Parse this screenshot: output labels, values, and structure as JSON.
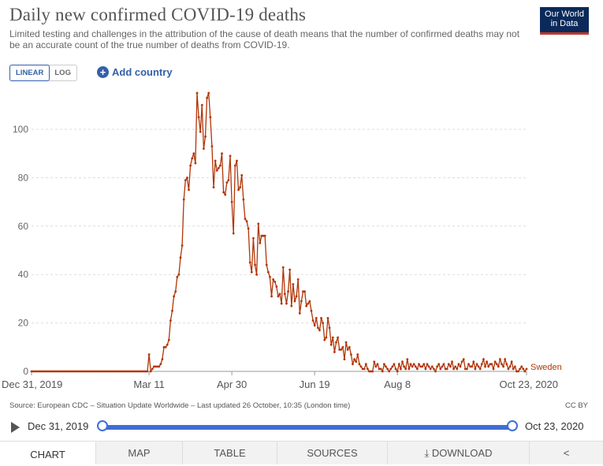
{
  "header": {
    "title": "Daily new confirmed COVID-19 deaths",
    "subtitle": "Limited testing and challenges in the attribution of the cause of death means that the number of confirmed deaths may not be an accurate count of the true number of deaths from COVID-19."
  },
  "logo": {
    "line1": "Our World",
    "line2": "in Data"
  },
  "controls": {
    "linear_label": "LINEAR",
    "log_label": "LOG",
    "add_country_label": "Add country",
    "active_scale": "linear"
  },
  "footer": {
    "source": "Source: European CDC – Situation Update Worldwide – Last updated 26 October, 10:35 (London time)",
    "license": "CC BY"
  },
  "timeline": {
    "start_label": "Dec 31, 2019",
    "end_label": "Oct 23, 2020"
  },
  "tabs": {
    "chart": "CHART",
    "map": "MAP",
    "table": "TABLE",
    "sources": "SOURCES",
    "download": "DOWNLOAD"
  },
  "colors": {
    "series": "#b13507",
    "accent": "#3f6fd4",
    "logo_bg": "#0b2a5b"
  },
  "chart_data": {
    "type": "line",
    "title": "Daily new confirmed COVID-19 deaths",
    "x_tick_labels": [
      "Dec 31, 2019",
      "Mar 11",
      "Apr 30",
      "Jun 19",
      "Aug 8",
      "Oct 23, 2020"
    ],
    "y_ticks": [
      0,
      20,
      40,
      60,
      80,
      100
    ],
    "ylim": [
      0,
      117
    ],
    "grid": true,
    "series": [
      {
        "name": "Sweden",
        "start_date": "2019-12-31",
        "values": [
          0,
          0,
          0,
          0,
          0,
          0,
          0,
          0,
          0,
          0,
          0,
          0,
          0,
          0,
          0,
          0,
          0,
          0,
          0,
          0,
          0,
          0,
          0,
          0,
          0,
          0,
          0,
          0,
          0,
          0,
          0,
          0,
          0,
          0,
          0,
          0,
          0,
          0,
          0,
          0,
          0,
          0,
          0,
          0,
          0,
          0,
          0,
          0,
          0,
          0,
          0,
          0,
          0,
          0,
          0,
          0,
          0,
          0,
          0,
          0,
          0,
          0,
          0,
          0,
          0,
          0,
          0,
          0,
          0,
          0,
          0,
          7,
          0,
          1,
          2,
          2,
          2,
          2,
          3,
          5,
          10,
          10,
          11,
          13,
          21,
          25,
          31,
          33,
          39,
          40,
          47,
          52,
          71,
          79,
          80,
          75,
          85,
          88,
          90,
          86,
          115,
          105,
          99,
          110,
          92,
          97,
          113,
          115,
          105,
          93,
          76,
          87,
          83,
          84,
          85,
          90,
          74,
          73,
          78,
          79,
          89,
          70,
          57,
          85,
          87,
          75,
          76,
          81,
          71,
          63,
          62,
          59,
          45,
          41,
          55,
          44,
          40,
          61,
          53,
          56,
          56,
          56,
          44,
          41,
          39,
          31,
          38,
          37,
          35,
          31,
          32,
          28,
          43,
          32,
          28,
          33,
          42,
          27,
          36,
          29,
          31,
          38,
          24,
          29,
          33,
          33,
          27,
          28,
          29,
          25,
          21,
          19,
          22,
          18,
          17,
          22,
          20,
          13,
          14,
          22,
          18,
          11,
          14,
          8,
          12,
          14,
          9,
          9,
          10,
          5,
          12,
          9,
          10,
          7,
          3,
          5,
          4,
          7,
          3,
          2,
          1,
          1,
          3,
          1,
          0,
          0,
          0,
          4,
          2,
          3,
          1,
          1,
          0,
          3,
          2,
          1,
          0,
          1,
          2,
          3,
          1,
          0,
          3,
          1,
          4,
          2,
          1,
          5,
          1,
          3,
          2,
          3,
          2,
          1,
          3,
          2,
          2,
          3,
          1,
          3,
          2,
          1,
          2,
          1,
          0,
          2,
          3,
          1,
          2,
          3,
          1,
          1,
          3,
          2,
          4,
          1,
          2,
          1,
          3,
          2,
          4,
          5,
          1,
          1,
          3,
          2,
          2,
          4,
          1,
          3,
          2,
          1,
          3,
          5,
          2,
          4,
          2,
          3,
          3,
          1,
          4,
          3,
          2,
          5,
          3,
          2,
          5,
          3,
          1,
          2,
          4,
          1,
          2,
          0,
          0,
          1,
          2,
          1,
          0,
          1
        ]
      }
    ]
  }
}
